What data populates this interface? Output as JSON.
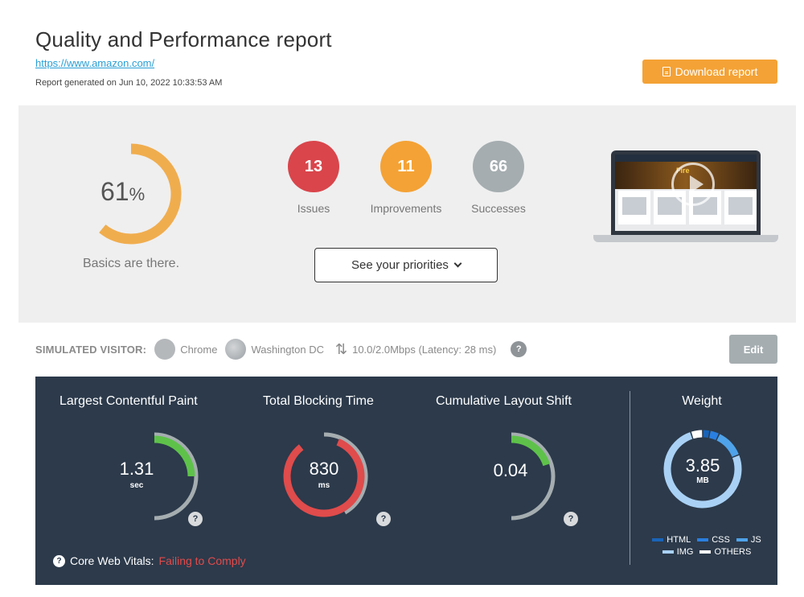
{
  "header": {
    "title": "Quality and Performance report",
    "url": "https://www.amazon.com/",
    "generated": "Report generated on Jun 10, 2022 10:33:53 AM",
    "download_label": "Download report",
    "download_color": "#f4a235"
  },
  "summary": {
    "score_value": "61",
    "score_unit": "%",
    "score_fraction": 0.61,
    "score_label": "Basics are there.",
    "counters": [
      {
        "value": "13",
        "label": "Issues",
        "color": "#d9454b"
      },
      {
        "value": "11",
        "label": "Improvements",
        "color": "#f4a235"
      },
      {
        "value": "66",
        "label": "Successes",
        "color": "#a5adb0"
      }
    ],
    "priorities_label": "See your priorities",
    "preview_headline": "Fire"
  },
  "visitor": {
    "title": "SIMULATED VISITOR:",
    "browser": "Chrome",
    "location": "Washington DC",
    "connection": "10.0/2.0Mbps (Latency: 28 ms)",
    "edit_label": "Edit"
  },
  "metrics": [
    {
      "title": "Largest Contentful Paint",
      "value": "1.31",
      "unit": "sec",
      "status": "good",
      "color": "#5ec24a",
      "fill_fraction": 0.25
    },
    {
      "title": "Total Blocking Time",
      "value": "830",
      "unit": "ms",
      "status": "poor",
      "color": "#e04b4b",
      "fill_fraction": 0.82
    },
    {
      "title": "Cumulative Layout Shift",
      "value": "0.04",
      "unit": "",
      "status": "good",
      "color": "#5ec24a",
      "fill_fraction": 0.2
    }
  ],
  "weight": {
    "title": "Weight",
    "value": "3.85",
    "unit": "MB",
    "legend": [
      {
        "name": "HTML",
        "color": "#1a64b8"
      },
      {
        "name": "CSS",
        "color": "#2a7fe0"
      },
      {
        "name": "JS",
        "color": "#4fa3ea"
      },
      {
        "name": "IMG",
        "color": "#a9d1f5"
      },
      {
        "name": "OTHERS",
        "color": "#ffffff"
      }
    ],
    "segments": [
      {
        "name": "HTML",
        "fraction": 0.03
      },
      {
        "name": "CSS",
        "fraction": 0.04
      },
      {
        "name": "JS",
        "fraction": 0.12
      },
      {
        "name": "IMG",
        "fraction": 0.76
      },
      {
        "name": "OTHERS",
        "fraction": 0.05
      }
    ]
  },
  "core_web_vitals": {
    "label": "Core Web Vitals:",
    "status": "Failing to Comply",
    "status_color": "#e04b4b"
  }
}
